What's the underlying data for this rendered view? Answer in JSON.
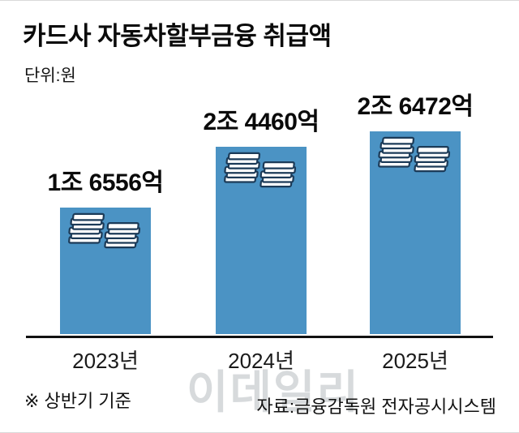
{
  "chart": {
    "title": "카드사 자동차할부금융 취급액",
    "unit_label": "단위:원",
    "footnote": "※ 상반기 기준",
    "source": "자료:금융감독원 전자공시시스템",
    "watermark": "이데일리",
    "colors": {
      "bar": "#4b93c4",
      "icon_outline": "#1c3b58",
      "icon_fill": "#ffffff",
      "axis": "#111111",
      "watermark": "#d7dadc"
    },
    "icons": {
      "bar_decoration": "money-stacks-icon"
    }
  },
  "chart_data": {
    "type": "bar",
    "title": "카드사 자동차할부금융 취급액",
    "categories": [
      "2023년",
      "2024년",
      "2025년"
    ],
    "values": [
      16556,
      24460,
      26472
    ],
    "value_labels": [
      "1조 6556억",
      "2조 4460억",
      "2조 6472억"
    ],
    "unit": "억원",
    "unit_displayed": "원",
    "xlabel": "",
    "ylabel": "",
    "ylim": [
      0,
      26472
    ],
    "grid": false,
    "legend": false,
    "note": "※ 상반기 기준",
    "source": "자료:금융감독원 전자공시시스템"
  }
}
